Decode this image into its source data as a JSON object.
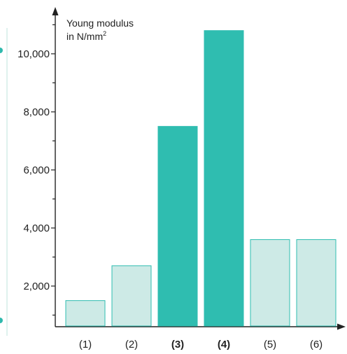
{
  "chart_data": {
    "type": "bar",
    "ylabel_line1": "Young modulus",
    "ylabel_line2_base": "in N/mm",
    "ylabel_line2_sup": "2",
    "categories": [
      "(1)",
      "(2)",
      "(3)",
      "(4)",
      "(5)",
      "(6)"
    ],
    "bold_categories": [
      false,
      false,
      true,
      true,
      false,
      false
    ],
    "values": [
      1500,
      2700,
      7500,
      10800,
      3600,
      3600
    ],
    "highlighted": [
      false,
      false,
      true,
      true,
      false,
      false
    ],
    "y_ticks": [
      2000,
      4000,
      6000,
      8000,
      10000
    ],
    "y_tick_labels": [
      "2,000",
      "4,000",
      "6,000",
      "8,000",
      "10,000"
    ],
    "ylim": [
      600,
      11400
    ],
    "grid": false,
    "colors": {
      "highlight_fill": "#2fbdb0",
      "normal_fill": "#cdeae6",
      "bar_stroke": "#2fbdb0",
      "axis": "#222222",
      "edge_line": "#bfe3de",
      "edge_dot": "#2fb9ad"
    }
  }
}
